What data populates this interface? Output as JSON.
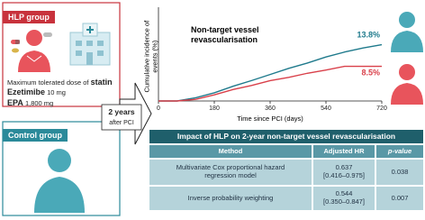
{
  "hlp_group": {
    "title": "HLP group",
    "drugs": [
      {
        "prefix": "Maximum tolerated dose of",
        "name": "statin"
      },
      {
        "name": "Ezetimibe",
        "dose": "10 mg"
      },
      {
        "name": "EPA",
        "dose": "1,800 mg"
      }
    ]
  },
  "control_group": {
    "title": "Control group"
  },
  "arrow_label": {
    "bold": "2 years",
    "text": "after PCI"
  },
  "chart_data": {
    "type": "line",
    "title": "Non-target vessel revascularisation",
    "xlabel": "Time since PCI (days)",
    "ylabel": "Cumulative incidence of events (%)",
    "x": [
      0,
      60,
      120,
      180,
      240,
      300,
      360,
      420,
      480,
      540,
      600,
      660,
      720
    ],
    "series": [
      {
        "name": "Control group",
        "color": "#1f7a8c",
        "values": [
          0,
          0,
          0.8,
          2,
          3.6,
          5,
          6.5,
          8,
          9.3,
          10.8,
          12,
          13,
          13.8
        ],
        "value_labels": [
          null,
          null,
          null,
          null,
          null,
          null,
          null,
          null,
          null,
          null,
          null,
          null,
          "13.8%"
        ]
      },
      {
        "name": "HLP group",
        "color": "#d9404a",
        "values": [
          0,
          0,
          0.4,
          1.5,
          2.8,
          3.8,
          5,
          5.8,
          6.8,
          7.6,
          8.5,
          8.5,
          8.5
        ],
        "value_labels": [
          null,
          null,
          null,
          null,
          null,
          null,
          null,
          null,
          null,
          null,
          null,
          null,
          "8.5%"
        ]
      }
    ],
    "xlim": [
      0,
      720
    ],
    "xticks": [
      0,
      180,
      360,
      540,
      720
    ],
    "ylim": [
      0,
      23
    ]
  },
  "table": {
    "title": "Impact of HLP on 2-year non-target vessel revascularisation",
    "header": [
      "Method",
      "Adjusted HR",
      "p-value"
    ],
    "rows": [
      {
        "method": "Multivariate Cox proportional hazard regression model",
        "hr": "0.637",
        "ci": "[0.416–0.975]",
        "p": "0.038"
      },
      {
        "method": "Inverse probability weighting",
        "hr": "0.544",
        "ci": "[0.350–0.847]",
        "p": "0.007"
      }
    ]
  }
}
